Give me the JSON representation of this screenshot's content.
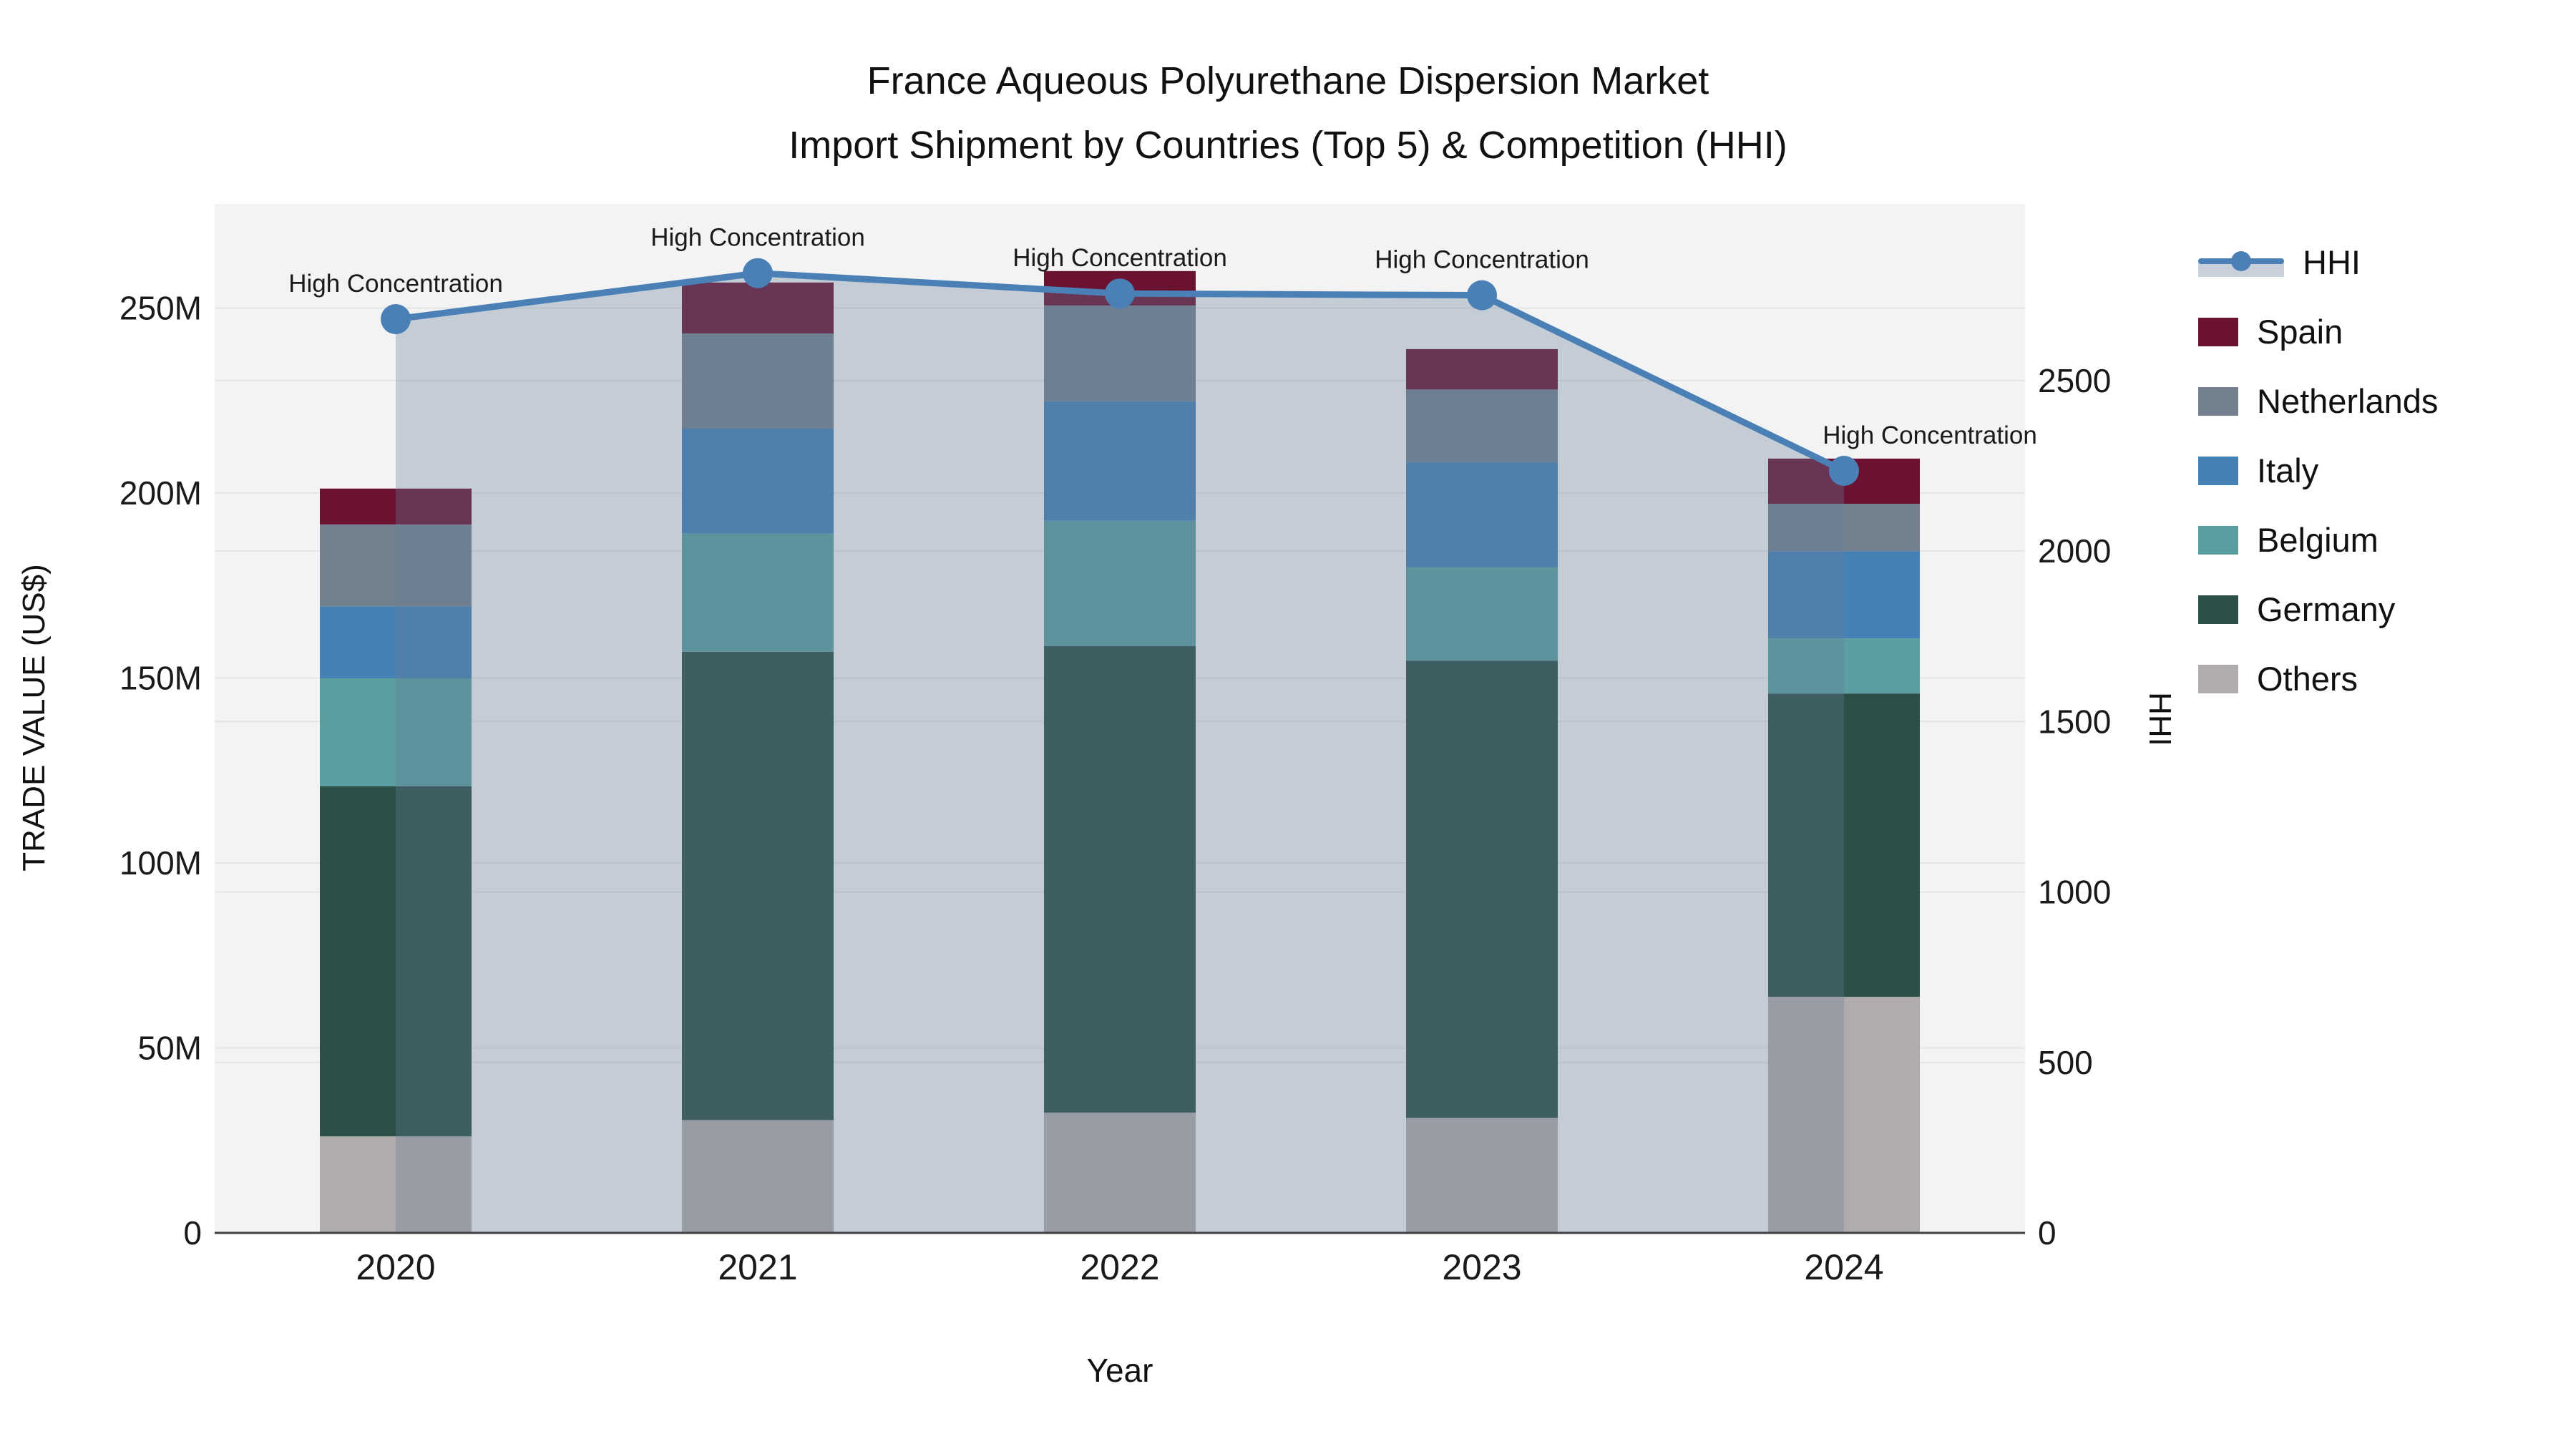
{
  "title": {
    "line1": "France Aqueous Polyurethane Dispersion Market",
    "line2": "Import Shipment by Countries (Top 5) & Competition (HHI)"
  },
  "chart_data": {
    "type": "combo-stacked-bar-line",
    "categories": [
      "2020",
      "2021",
      "2022",
      "2023",
      "2024"
    ],
    "series": [
      {
        "name": "Others",
        "color": "#b0acac",
        "values": [
          26.1,
          30.5,
          32.5,
          31.1,
          63.8
        ]
      },
      {
        "name": "Germany",
        "color": "#2c4f48",
        "values": [
          94.6,
          126.6,
          126.1,
          123.6,
          82.0
        ]
      },
      {
        "name": "Belgium",
        "color": "#5c9ea0",
        "values": [
          29.2,
          31.9,
          33.9,
          25.2,
          14.9
        ]
      },
      {
        "name": "Italy",
        "color": "#4581b4",
        "values": [
          19.5,
          28.4,
          32.3,
          28.4,
          23.6
        ]
      },
      {
        "name": "Netherlands",
        "color": "#73808e",
        "values": [
          22.1,
          25.7,
          25.9,
          19.7,
          12.8
        ]
      },
      {
        "name": "Spain",
        "color": "#6b1233",
        "values": [
          9.7,
          13.8,
          9.3,
          10.9,
          12.2
        ]
      }
    ],
    "bar_totals_musd": [
      201.2,
      256.9,
      260.0,
      238.9,
      209.3
    ],
    "line": {
      "name": "HHI",
      "color": "#4a80b5",
      "fill_color": "rgba(100,124,152,0.33)",
      "values": [
        2680,
        2815,
        2755,
        2750,
        2235
      ]
    },
    "annotations": [
      "High Concentration",
      "High Concentration",
      "High Concentration",
      "High Concentration",
      "High Concentration"
    ],
    "xlabel": "Year",
    "ylabel_left": "TRADE VALUE (US$)",
    "ylabel_right": "HHI",
    "yticks_left": {
      "values": [
        0,
        50,
        100,
        150,
        200,
        250
      ],
      "labels": [
        "0",
        "50M",
        "100M",
        "150M",
        "200M",
        "250M"
      ]
    },
    "yticks_right": {
      "values": [
        0,
        500,
        1000,
        1500,
        2000,
        2500
      ],
      "labels": [
        "0",
        "500",
        "1000",
        "1500",
        "2000",
        "2500"
      ]
    },
    "ylim_left_musd": [
      0,
      278
    ],
    "ylim_right_hhi": [
      0,
      3018
    ],
    "grid": true,
    "plot_bg": "#f3f3f3",
    "axis_line_color": "#3f3f3f",
    "grid_color": "#e4e4e4",
    "tick_color": "#1a1a1a",
    "annotation_color": "#1a1a1a",
    "legend_position": "right"
  },
  "legend": {
    "items": [
      {
        "label": "HHI",
        "type": "line",
        "color": "#4a80b5"
      },
      {
        "label": "Spain",
        "type": "square",
        "color": "#6b1233"
      },
      {
        "label": "Netherlands",
        "type": "square",
        "color": "#73808e"
      },
      {
        "label": "Italy",
        "type": "square",
        "color": "#4581b4"
      },
      {
        "label": "Belgium",
        "type": "square",
        "color": "#5c9ea0"
      },
      {
        "label": "Germany",
        "type": "square",
        "color": "#2c4f48"
      },
      {
        "label": "Others",
        "type": "square",
        "color": "#b0acac"
      }
    ]
  }
}
